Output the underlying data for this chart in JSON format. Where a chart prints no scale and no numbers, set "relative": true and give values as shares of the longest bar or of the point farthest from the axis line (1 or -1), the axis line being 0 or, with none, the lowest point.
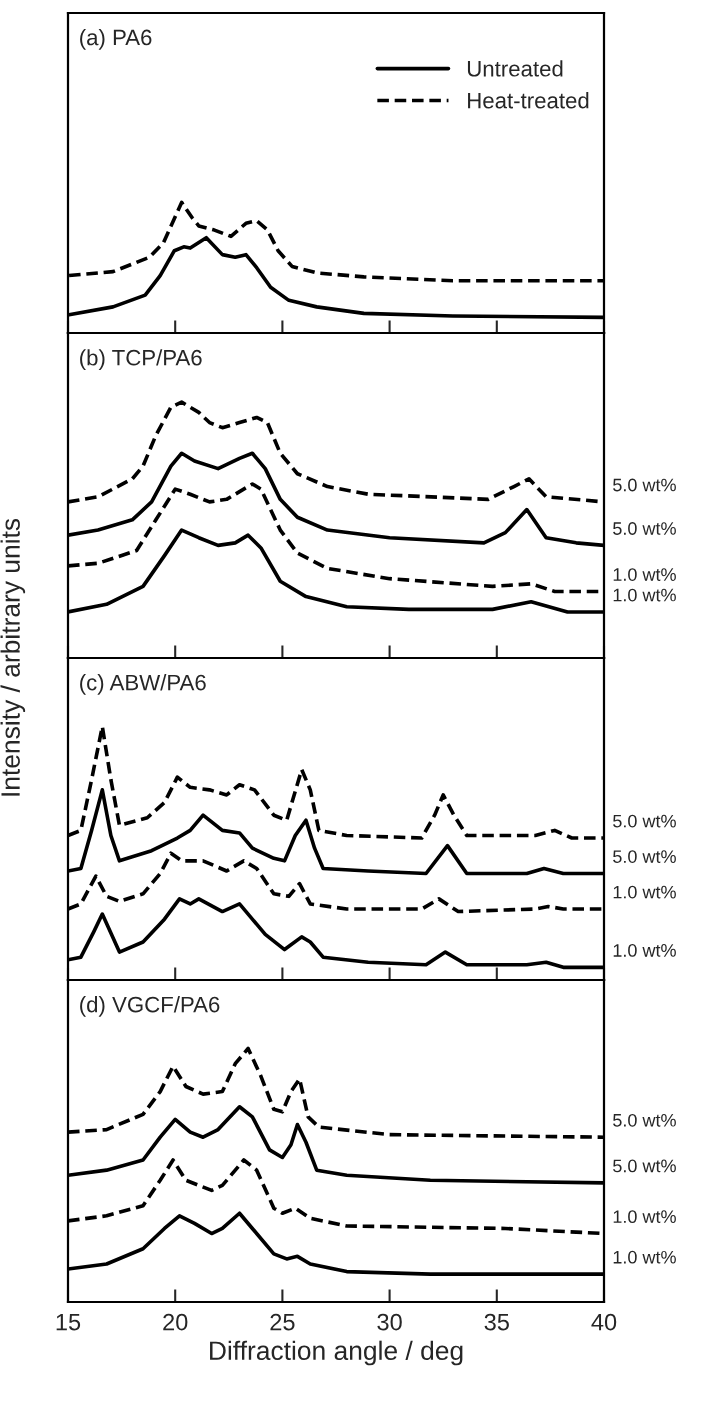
{
  "chart_data": [
    {
      "type": "line",
      "title": "(a) PA6",
      "relative": true,
      "xlim": [
        15,
        40
      ],
      "xticks": [
        15,
        20,
        25,
        30,
        35,
        40
      ],
      "tick_labels": false,
      "legend": "top right",
      "grid": false,
      "marker": "none",
      "series": [
        {
          "name": "Untreated",
          "color": "#000000",
          "line_style": "solid",
          "x": [
            15.05,
            17.1,
            18.6,
            19.3,
            19.96,
            20.4,
            20.7,
            21.45,
            22.2,
            22.8,
            23.3,
            23.8,
            24.45,
            25.3,
            26.6,
            28.8,
            32.95,
            40
          ],
          "values": [
            0.14,
            0.2,
            0.29,
            0.44,
            0.63,
            0.66,
            0.65,
            0.73,
            0.6,
            0.58,
            0.6,
            0.5,
            0.35,
            0.25,
            0.2,
            0.15,
            0.13,
            0.12
          ]
        },
        {
          "name": "Heat-treated",
          "color": "#000000",
          "line_style": "dashed",
          "x": [
            15.05,
            17.1,
            18.8,
            19.45,
            20.3,
            20.8,
            21.1,
            21.8,
            22.6,
            23.3,
            23.8,
            24.3,
            24.8,
            25.45,
            26.6,
            28.8,
            32.95,
            40
          ],
          "values": [
            0.44,
            0.47,
            0.58,
            0.69,
            1,
            0.88,
            0.82,
            0.79,
            0.74,
            0.84,
            0.86,
            0.79,
            0.63,
            0.51,
            0.46,
            0.43,
            0.4,
            0.4
          ]
        }
      ]
    },
    {
      "type": "line",
      "title": "(b) TCP/PA6",
      "ylabel": "Intensity / arbitrary units",
      "relative": true,
      "xlim": [
        15,
        40
      ],
      "xticks": [
        15,
        20,
        25,
        30,
        35,
        40
      ],
      "tick_labels": false,
      "grid": false,
      "marker": "none",
      "annotations": [
        "5.0 wt%",
        "5.0 wt%",
        "1.0 wt%",
        "1.0 wt%"
      ],
      "series": [
        {
          "color": "#000000",
          "line_style": "dashed",
          "x": [
            15,
            16.4,
            18.0,
            18.5,
            19.1,
            19.8,
            20.3,
            21.1,
            21.6,
            22.2,
            23.0,
            23.8,
            24.3,
            24.9,
            25.7,
            27.1,
            29.0,
            34.6,
            35.8,
            36.5,
            37.3,
            40
          ],
          "values": [
            0.61,
            0.63,
            0.7,
            0.75,
            0.87,
            0.98,
            1,
            0.96,
            0.92,
            0.9,
            0.92,
            0.94,
            0.92,
            0.8,
            0.72,
            0.67,
            0.64,
            0.62,
            0.67,
            0.7,
            0.63,
            0.61
          ]
        },
        {
          "color": "#000000",
          "line_style": "solid",
          "x": [
            15,
            16.4,
            18.0,
            18.9,
            19.8,
            20.3,
            20.9,
            22.0,
            23.0,
            23.6,
            24.2,
            24.9,
            25.7,
            27.1,
            30.0,
            34.4,
            35.4,
            36.4,
            37.3,
            38.7,
            40
          ],
          "values": [
            0.48,
            0.5,
            0.54,
            0.61,
            0.75,
            0.8,
            0.77,
            0.74,
            0.78,
            0.8,
            0.74,
            0.62,
            0.55,
            0.5,
            0.47,
            0.45,
            0.49,
            0.58,
            0.47,
            0.45,
            0.44
          ]
        },
        {
          "color": "#000000",
          "line_style": "dashed",
          "x": [
            15,
            16.4,
            18.2,
            19.1,
            20.0,
            20.7,
            21.6,
            22.4,
            23.6,
            24.0,
            24.9,
            25.7,
            27.1,
            30.0,
            34.8,
            36.6,
            37.7,
            40
          ],
          "values": [
            0.36,
            0.37,
            0.42,
            0.54,
            0.66,
            0.64,
            0.61,
            0.62,
            0.68,
            0.66,
            0.5,
            0.41,
            0.35,
            0.31,
            0.28,
            0.29,
            0.26,
            0.26
          ]
        },
        {
          "color": "#000000",
          "line_style": "solid",
          "x": [
            15,
            16.8,
            18.5,
            19.5,
            20.3,
            21.1,
            22.0,
            22.8,
            23.4,
            24.0,
            24.9,
            26.1,
            28.0,
            30.9,
            34.8,
            36.6,
            38.3,
            40
          ],
          "values": [
            0.18,
            0.21,
            0.28,
            0.4,
            0.5,
            0.47,
            0.44,
            0.45,
            0.48,
            0.43,
            0.3,
            0.24,
            0.2,
            0.19,
            0.19,
            0.22,
            0.18,
            0.18
          ]
        }
      ]
    },
    {
      "type": "line",
      "title": "(c) ABW/PA6",
      "relative": true,
      "xlim": [
        15,
        40
      ],
      "xticks": [
        15,
        20,
        25,
        30,
        35,
        40
      ],
      "tick_labels": false,
      "grid": false,
      "marker": "none",
      "annotations": [
        "5.0 wt%",
        "5.0 wt%",
        "1.0 wt%",
        "1.0 wt%"
      ],
      "series": [
        {
          "color": "#000000",
          "line_style": "dashed",
          "x": [
            15,
            15.6,
            16.1,
            16.6,
            17.0,
            17.4,
            18.7,
            19.5,
            20.1,
            20.7,
            21.6,
            22.4,
            23.0,
            23.7,
            24.6,
            25.2,
            25.9,
            26.3,
            26.7,
            28.0,
            31.5,
            32.1,
            32.5,
            33.0,
            33.6,
            36.8,
            37.7,
            38.5,
            40
          ],
          "values": [
            0.57,
            0.59,
            0.79,
            1,
            0.79,
            0.61,
            0.64,
            0.7,
            0.8,
            0.76,
            0.75,
            0.73,
            0.77,
            0.75,
            0.65,
            0.63,
            0.83,
            0.75,
            0.59,
            0.57,
            0.56,
            0.65,
            0.73,
            0.65,
            0.57,
            0.57,
            0.59,
            0.56,
            0.56
          ]
        },
        {
          "color": "#000000",
          "line_style": "solid",
          "x": [
            15,
            15.6,
            16.1,
            16.6,
            17.0,
            17.4,
            18.9,
            20.1,
            20.7,
            21.3,
            22.2,
            23.0,
            23.6,
            24.6,
            25.1,
            25.6,
            26.1,
            26.5,
            26.9,
            29.0,
            31.7,
            32.7,
            33.6,
            36.4,
            37.2,
            38.1,
            40
          ],
          "values": [
            0.43,
            0.44,
            0.59,
            0.75,
            0.57,
            0.47,
            0.51,
            0.56,
            0.59,
            0.65,
            0.59,
            0.58,
            0.52,
            0.48,
            0.47,
            0.57,
            0.63,
            0.52,
            0.44,
            0.43,
            0.42,
            0.53,
            0.42,
            0.42,
            0.44,
            0.42,
            0.42
          ]
        },
        {
          "color": "#000000",
          "line_style": "dashed",
          "x": [
            15,
            15.6,
            16.3,
            16.8,
            17.4,
            18.5,
            19.3,
            19.8,
            20.3,
            21.3,
            22.4,
            23.2,
            23.8,
            24.6,
            25.3,
            25.8,
            26.3,
            28.0,
            31.5,
            32.3,
            33.2,
            36.8,
            37.4,
            38.1,
            40
          ],
          "values": [
            0.28,
            0.3,
            0.41,
            0.33,
            0.31,
            0.34,
            0.42,
            0.5,
            0.47,
            0.47,
            0.43,
            0.47,
            0.44,
            0.34,
            0.33,
            0.38,
            0.3,
            0.28,
            0.28,
            0.32,
            0.27,
            0.28,
            0.29,
            0.28,
            0.28
          ]
        },
        {
          "color": "#000000",
          "line_style": "solid",
          "x": [
            15,
            15.6,
            16.2,
            16.6,
            17.4,
            18.5,
            19.5,
            20.2,
            20.7,
            21.1,
            22.2,
            23.0,
            24.2,
            25.1,
            25.9,
            26.3,
            26.9,
            29.0,
            31.7,
            32.6,
            33.6,
            36.4,
            37.3,
            38.1,
            40
          ],
          "values": [
            0.08,
            0.09,
            0.19,
            0.26,
            0.11,
            0.15,
            0.24,
            0.32,
            0.3,
            0.32,
            0.27,
            0.3,
            0.18,
            0.12,
            0.17,
            0.15,
            0.09,
            0.07,
            0.06,
            0.11,
            0.06,
            0.06,
            0.07,
            0.05,
            0.05
          ]
        }
      ]
    },
    {
      "type": "line",
      "title": "(d) VGCF/PA6",
      "xlabel": "Diffraction angle / deg",
      "relative": true,
      "xlim": [
        15,
        40
      ],
      "xticks": [
        15,
        20,
        25,
        30,
        35,
        40
      ],
      "tick_labels": "x",
      "grid": false,
      "marker": "none",
      "annotations": [
        "5.0 wt%",
        "5.0 wt%",
        "1.0 wt%",
        "1.0 wt%"
      ],
      "series": [
        {
          "color": "#000000",
          "line_style": "dashed",
          "x": [
            15,
            16.8,
            18.5,
            19.3,
            19.9,
            20.5,
            21.3,
            22.2,
            22.8,
            23.4,
            24.0,
            24.6,
            25.0,
            25.4,
            25.8,
            26.2,
            26.7,
            30.0,
            40
          ],
          "values": [
            0.67,
            0.68,
            0.74,
            0.83,
            0.93,
            0.85,
            0.82,
            0.83,
            0.94,
            1,
            0.89,
            0.76,
            0.75,
            0.83,
            0.88,
            0.73,
            0.69,
            0.66,
            0.65
          ]
        },
        {
          "color": "#000000",
          "line_style": "solid",
          "x": [
            15,
            16.8,
            18.5,
            19.3,
            20.0,
            20.7,
            21.3,
            22.0,
            23.0,
            23.6,
            24.4,
            25.0,
            25.4,
            25.7,
            26.1,
            26.6,
            28.0,
            31.9,
            40
          ],
          "values": [
            0.5,
            0.52,
            0.56,
            0.65,
            0.72,
            0.67,
            0.65,
            0.68,
            0.77,
            0.73,
            0.6,
            0.57,
            0.62,
            0.7,
            0.63,
            0.52,
            0.5,
            0.48,
            0.47
          ]
        },
        {
          "color": "#000000",
          "line_style": "dashed",
          "x": [
            15,
            16.8,
            18.5,
            19.3,
            19.9,
            20.5,
            21.7,
            22.2,
            23.2,
            23.8,
            24.6,
            25.0,
            25.6,
            26.3,
            28.0,
            35.4,
            40
          ],
          "values": [
            0.32,
            0.34,
            0.38,
            0.48,
            0.56,
            0.48,
            0.44,
            0.46,
            0.56,
            0.52,
            0.37,
            0.35,
            0.37,
            0.33,
            0.3,
            0.29,
            0.27
          ]
        },
        {
          "color": "#000000",
          "line_style": "solid",
          "x": [
            15,
            16.8,
            18.5,
            19.5,
            20.2,
            20.9,
            21.7,
            22.2,
            23.0,
            23.6,
            24.6,
            25.2,
            25.7,
            26.3,
            28.0,
            31.9,
            40
          ],
          "values": [
            0.13,
            0.15,
            0.21,
            0.29,
            0.34,
            0.31,
            0.27,
            0.29,
            0.35,
            0.29,
            0.19,
            0.17,
            0.18,
            0.15,
            0.12,
            0.11,
            0.11
          ]
        }
      ]
    }
  ]
}
